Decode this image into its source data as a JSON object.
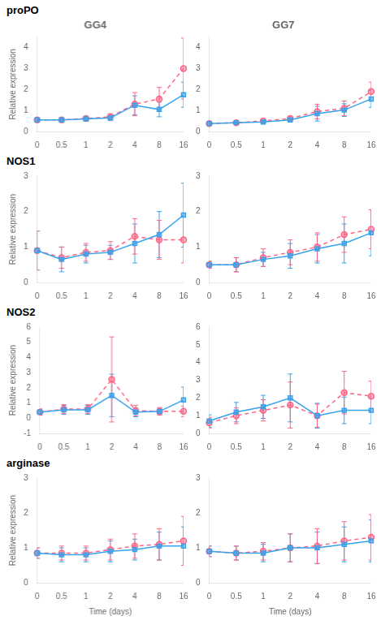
{
  "chart_data": [
    {
      "type": "line",
      "title": "GG4",
      "annotations": [
        "proPO"
      ],
      "ylabel": "Relative expression",
      "categories": [
        "0",
        "0.5",
        "1",
        "2",
        "4",
        "8",
        "16"
      ],
      "ylim": [
        0,
        4.5
      ],
      "yticks": [
        0,
        1,
        2,
        3,
        4
      ],
      "grid": false,
      "series": [
        {
          "marker": "square",
          "line_style": "solid",
          "values": [
            0.55,
            0.55,
            0.6,
            0.65,
            1.25,
            1.05,
            1.75
          ],
          "errors": [
            0.05,
            0.05,
            0.1,
            0.12,
            0.45,
            0.35,
            0.6
          ]
        },
        {
          "marker": "circle",
          "line_style": "dashed",
          "values": [
            0.55,
            0.55,
            0.62,
            0.7,
            1.3,
            1.55,
            3.0
          ],
          "errors": [
            0.05,
            0.05,
            0.1,
            0.15,
            0.55,
            0.55,
            1.45
          ]
        }
      ]
    },
    {
      "type": "line",
      "title": "GG7",
      "categories": [
        "0",
        "0.5",
        "1",
        "2",
        "4",
        "8",
        "16"
      ],
      "ylim": [
        0,
        4.5
      ],
      "yticks": [
        0,
        1,
        2,
        3,
        4
      ],
      "grid": false,
      "series": [
        {
          "marker": "square",
          "line_style": "solid",
          "values": [
            0.38,
            0.42,
            0.45,
            0.55,
            0.85,
            1.02,
            1.55
          ],
          "errors": [
            0.05,
            0.05,
            0.05,
            0.08,
            0.35,
            0.3,
            0.4
          ]
        },
        {
          "marker": "circle",
          "line_style": "dashed",
          "values": [
            0.38,
            0.42,
            0.5,
            0.62,
            0.95,
            1.1,
            1.9
          ],
          "errors": [
            0.05,
            0.05,
            0.05,
            0.1,
            0.35,
            0.35,
            0.45
          ]
        }
      ]
    },
    {
      "type": "line",
      "annotations": [
        "NOS1"
      ],
      "ylabel": "Relative expression",
      "categories": [
        "0",
        "0.5",
        "1",
        "2",
        "4",
        "8",
        "16"
      ],
      "ylim": [
        0,
        3.0
      ],
      "yticks": [
        0,
        1,
        2,
        3
      ],
      "grid": false,
      "series": [
        {
          "marker": "square",
          "line_style": "solid",
          "values": [
            0.9,
            0.65,
            0.8,
            0.85,
            1.1,
            1.35,
            1.9
          ],
          "errors": [
            0.55,
            0.35,
            0.25,
            0.2,
            0.55,
            0.65,
            0.9
          ]
        },
        {
          "marker": "circle",
          "line_style": "dashed",
          "values": [
            0.9,
            0.7,
            0.85,
            0.9,
            1.3,
            1.2,
            1.2
          ],
          "errors": [
            0.55,
            0.3,
            0.25,
            0.25,
            0.5,
            0.55,
            0.65
          ]
        }
      ]
    },
    {
      "type": "line",
      "categories": [
        "0",
        "0.5",
        "1",
        "2",
        "4",
        "8",
        "16"
      ],
      "ylim": [
        0,
        3.0
      ],
      "yticks": [
        0,
        1,
        2,
        3
      ],
      "grid": false,
      "series": [
        {
          "marker": "square",
          "line_style": "solid",
          "values": [
            0.5,
            0.5,
            0.65,
            0.75,
            0.95,
            1.1,
            1.4
          ],
          "errors": [
            0.1,
            0.2,
            0.2,
            0.35,
            0.4,
            0.55,
            0.65
          ]
        },
        {
          "marker": "circle",
          "line_style": "dashed",
          "values": [
            0.5,
            0.5,
            0.7,
            0.85,
            1.0,
            1.35,
            1.5
          ],
          "errors": [
            0.1,
            0.2,
            0.25,
            0.35,
            0.4,
            0.5,
            0.55
          ]
        }
      ]
    },
    {
      "type": "line",
      "annotations": [
        "NOS2"
      ],
      "ylabel": "Relative expression",
      "categories": [
        "0",
        "0.5",
        "1",
        "2",
        "4",
        "8",
        "16"
      ],
      "ylim": [
        -1,
        6.0
      ],
      "yticks": [
        -1,
        0,
        1,
        2,
        3,
        4,
        5,
        6
      ],
      "grid": false,
      "series": [
        {
          "marker": "square",
          "line_style": "solid",
          "values": [
            0.4,
            0.55,
            0.55,
            1.5,
            0.4,
            0.45,
            1.2
          ],
          "errors": [
            0.2,
            0.3,
            0.3,
            1.4,
            0.3,
            0.2,
            0.85
          ]
        },
        {
          "marker": "circle",
          "line_style": "dashed",
          "values": [
            0.4,
            0.6,
            0.6,
            2.55,
            0.5,
            0.45,
            0.45
          ],
          "errors": [
            0.2,
            0.3,
            0.3,
            2.8,
            0.35,
            0.25,
            0.35
          ]
        }
      ]
    },
    {
      "type": "line",
      "categories": [
        "0",
        "0.5",
        "1",
        "2",
        "4",
        "8",
        "16"
      ],
      "ylim": [
        0,
        6.0
      ],
      "yticks": [
        0,
        1,
        2,
        3,
        4,
        5,
        6
      ],
      "grid": false,
      "series": [
        {
          "marker": "square",
          "line_style": "solid",
          "values": [
            0.7,
            1.2,
            1.5,
            2.0,
            1.0,
            1.3,
            1.3
          ],
          "errors": [
            0.35,
            0.55,
            0.65,
            1.35,
            0.7,
            0.75,
            0.75
          ]
        },
        {
          "marker": "circle",
          "line_style": "dashed",
          "values": [
            0.6,
            1.0,
            1.3,
            1.6,
            1.0,
            2.3,
            2.1
          ],
          "errors": [
            0.3,
            0.45,
            0.6,
            1.3,
            0.65,
            1.2,
            0.85
          ]
        }
      ]
    },
    {
      "type": "line",
      "annotations": [
        "arginase"
      ],
      "ylabel": "Relative expression",
      "xlabel": "Time (days)",
      "categories": [
        "0",
        "0.5",
        "1",
        "2",
        "4",
        "8",
        "16"
      ],
      "ylim": [
        0,
        3.0
      ],
      "yticks": [
        0,
        1,
        2,
        3
      ],
      "grid": false,
      "series": [
        {
          "marker": "square",
          "line_style": "solid",
          "values": [
            0.85,
            0.8,
            0.8,
            0.9,
            0.95,
            1.05,
            1.05
          ],
          "errors": [
            0.15,
            0.2,
            0.2,
            0.3,
            0.3,
            0.4,
            0.55
          ]
        },
        {
          "marker": "circle",
          "line_style": "dashed",
          "values": [
            0.85,
            0.85,
            0.85,
            0.95,
            1.05,
            1.1,
            1.2
          ],
          "errors": [
            0.15,
            0.2,
            0.2,
            0.3,
            0.35,
            0.45,
            0.7
          ]
        }
      ]
    },
    {
      "type": "line",
      "xlabel": "Time (days)",
      "categories": [
        "0",
        "0.5",
        "1",
        "2",
        "4",
        "8",
        "16"
      ],
      "ylim": [
        0,
        3.0
      ],
      "yticks": [
        0,
        1,
        2,
        3
      ],
      "grid": false,
      "series": [
        {
          "marker": "square",
          "line_style": "solid",
          "values": [
            0.9,
            0.85,
            0.85,
            1.0,
            1.0,
            1.1,
            1.2
          ],
          "errors": [
            0.15,
            0.2,
            0.25,
            0.4,
            0.45,
            0.5,
            0.6
          ]
        },
        {
          "marker": "circle",
          "line_style": "dashed",
          "values": [
            0.9,
            0.85,
            0.9,
            1.0,
            1.05,
            1.2,
            1.3
          ],
          "errors": [
            0.15,
            0.2,
            0.25,
            0.4,
            0.5,
            0.55,
            0.65
          ]
        }
      ]
    }
  ]
}
